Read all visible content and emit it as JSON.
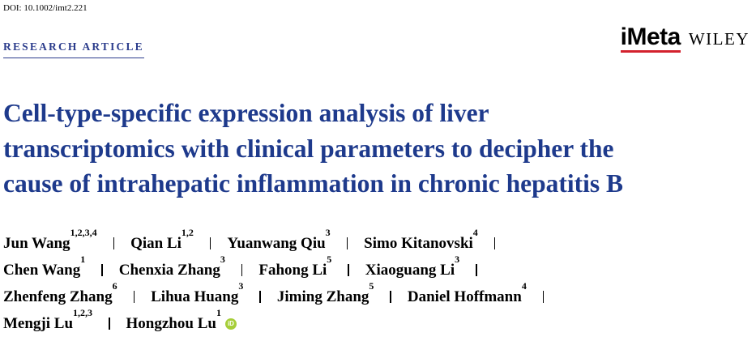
{
  "doi": "DOI: 10.1002/imt2.221",
  "section_label": "RESEARCH ARTICLE",
  "journal_logo": "iMeta",
  "publisher_logo": "WILEY",
  "title_lines": [
    "Cell-type-specific expression analysis of liver",
    "transcriptomics with clinical parameters to decipher the",
    "cause of intrahepatic inflammation in chronic hepatitis B"
  ],
  "author_lines": [
    [
      {
        "name": "Jun Wang",
        "affiliations": "1,2,3,4"
      },
      {
        "name": "Qian Li",
        "affiliations": "1,2"
      },
      {
        "name": "Yuanwang Qiu",
        "affiliations": "3"
      },
      {
        "name": "Simo Kitanovski",
        "affiliations": "4"
      }
    ],
    [
      {
        "name": "Chen Wang",
        "affiliations": "1"
      },
      {
        "name": "Chenxia Zhang",
        "affiliations": "3"
      },
      {
        "name": "Fahong Li",
        "affiliations": "5"
      },
      {
        "name": "Xiaoguang Li",
        "affiliations": "3"
      }
    ],
    [
      {
        "name": "Zhenfeng Zhang",
        "affiliations": "6"
      },
      {
        "name": "Lihua Huang",
        "affiliations": "3"
      },
      {
        "name": "Jiming Zhang",
        "affiliations": "5"
      },
      {
        "name": "Daniel Hoffmann",
        "affiliations": "4"
      }
    ],
    [
      {
        "name": "Mengji Lu",
        "affiliations": "1,2,3"
      },
      {
        "name": "Hongzhou Lu",
        "affiliations": "1"
      }
    ]
  ],
  "orcid_badge": "iD"
}
